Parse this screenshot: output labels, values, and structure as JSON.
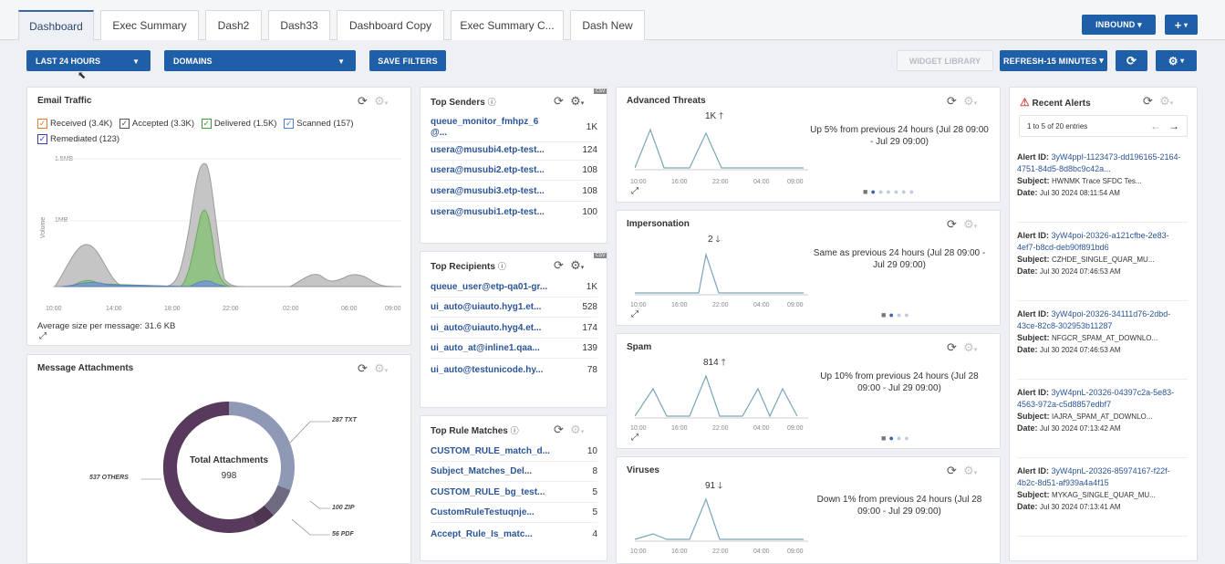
{
  "tabs": [
    "Dashboard",
    "Exec Summary",
    "Dash2",
    "Dash33",
    "Dashboard Copy",
    "Exec Summary C...",
    "Dash New"
  ],
  "header": {
    "inbound_label": "INBOUND",
    "plus_label": "+"
  },
  "filters": {
    "time_label": "LAST 24 HOURS",
    "domains_label": "DOMAINS",
    "save_label": "SAVE FILTERS",
    "widget_library_label": "WIDGET LIBRARY",
    "refresh_label": "REFRESH-15 MINUTES"
  },
  "icons": {
    "refresh": "refresh-icon",
    "gear": "gear-icon",
    "expand": "expand-icon",
    "info": "info-icon",
    "warning": "warning-icon"
  },
  "colors": {
    "accent": "#1f5fa8",
    "link": "#2b5596",
    "alert": "#d9534f"
  },
  "email_traffic": {
    "title": "Email Traffic",
    "legend": [
      "Received (3.4K)",
      "Accepted (3.3K)",
      "Delivered (1.5K)",
      "Scanned (157)",
      "Remediated (123)"
    ],
    "legend_colors": [
      "#e07a2e",
      "#555555",
      "#3d9b3d",
      "#4a7fd6",
      "#3d3db8"
    ],
    "y_ticks": [
      "1.5MB",
      "1MB"
    ],
    "y_label": "Volume",
    "x_ticks": [
      "10:00",
      "14:00",
      "18:00",
      "22:00",
      "02:00",
      "06:00",
      "09:00"
    ],
    "footer": "Average size per message: 31.6 KB"
  },
  "attachments": {
    "title": "Message Attachments",
    "center_title": "Total Attachments",
    "center_value": "998",
    "labels": [
      "287 TXT",
      "537 OTHERS",
      "100 ZIP",
      "56 PDF"
    ]
  },
  "top_senders": {
    "title": "Top Senders",
    "rows": [
      {
        "name": "queue_monitor_fmhpz_6",
        "name2": "@...",
        "value": "1K"
      },
      {
        "name": "usera@musubi4.etp-test...",
        "value": "124"
      },
      {
        "name": "usera@musubi2.etp-test...",
        "value": "108"
      },
      {
        "name": "usera@musubi3.etp-test...",
        "value": "108"
      },
      {
        "name": "usera@musubi1.etp-test...",
        "value": "100"
      }
    ]
  },
  "top_recipients": {
    "title": "Top Recipients",
    "rows": [
      {
        "name": "queue_user@etp-qa01-gr...",
        "value": "1K"
      },
      {
        "name": "ui_auto@uiauto.hyg1.et...",
        "value": "528"
      },
      {
        "name": "ui_auto@uiauto.hyg4.et...",
        "value": "174"
      },
      {
        "name": "ui_auto_at@inline1.qaa...",
        "value": "139"
      },
      {
        "name": "ui_auto@testunicode.hy...",
        "value": "78"
      }
    ]
  },
  "top_rules": {
    "title": "Top Rule Matches",
    "rows": [
      {
        "name": "CUSTOM_RULE_match_d...",
        "value": "10"
      },
      {
        "name": "Subject_Matches_Del...",
        "value": "8"
      },
      {
        "name": "CUSTOM_RULE_bg_test...",
        "value": "5"
      },
      {
        "name": "CustomRuleTestuqnje...",
        "value": "5"
      },
      {
        "name": "Accept_Rule_Is_matc...",
        "value": "4"
      }
    ]
  },
  "threats": [
    {
      "title": "Advanced Threats",
      "value": "1K",
      "arrow": "🡑",
      "text": "Up 5% from previous 24 hours (Jul 28 09:00 - Jul 29 09:00)",
      "x_ticks": [
        "10:00",
        "16:00",
        "22:00",
        "04:00",
        "09:00"
      ]
    },
    {
      "title": "Impersonation",
      "value": "2",
      "arrow": "🡓",
      "text": "Same as previous 24 hours (Jul 28 09:00 - Jul 29 09:00)",
      "x_ticks": [
        "10:00",
        "16:00",
        "22:00",
        "04:00",
        "09:00"
      ]
    },
    {
      "title": "Spam",
      "value": "814",
      "arrow": "🡑",
      "text": "Up 10% from previous 24 hours (Jul 28 09:00 - Jul 29 09:00)",
      "x_ticks": [
        "10:00",
        "16:00",
        "22:00",
        "04:00",
        "09:00"
      ]
    },
    {
      "title": "Viruses",
      "value": "91",
      "arrow": "🡓",
      "text": "Down 1% from previous 24 hours (Jul 28 09:00 - Jul 29 09:00)",
      "x_ticks": [
        "10:00",
        "16:00",
        "22:00",
        "04:00",
        "09:00"
      ]
    }
  ],
  "recent_alerts": {
    "title": "Recent Alerts",
    "pager": "1 to 5 of 20 entries",
    "items": [
      {
        "id": "3yW4ppI-1123473-dd196165-2164-4751-84d5-8d8bc9c42a...",
        "subject": "HWNMK Trace SFDC Tes...",
        "date": "Jul 30 2024 08:11:54 AM"
      },
      {
        "id": "3yW4poi-20326-a121cfbe-2e83-4ef7-b8cd-deb90f891bd6",
        "subject": "CZHDE_SINGLE_QUAR_MU...",
        "date": "Jul 30 2024 07:46:53 AM"
      },
      {
        "id": "3yW4poi-20326-34111d76-2dbd-43ce-82c8-302953b11287",
        "subject": "NFGCR_SPAM_AT_DOWNLO...",
        "date": "Jul 30 2024 07:46:53 AM"
      },
      {
        "id": "3yW4pnL-20326-04397c2a-5e83-4563-972a-c5d8857edbf7",
        "subject": "IAJRA_SPAM_AT_DOWNLO...",
        "date": "Jul 30 2024 07:13:42 AM"
      },
      {
        "id": "3yW4pnL-20326-85974167-f22f-4b2c-8d51-af939a4a4f15",
        "subject": "MYKAG_SINGLE_QUAR_MU...",
        "date": "Jul 30 2024 07:13:41 AM"
      }
    ],
    "labels": {
      "alert_id": "Alert ID:",
      "subject": "Subject:",
      "date": "Date:"
    }
  }
}
